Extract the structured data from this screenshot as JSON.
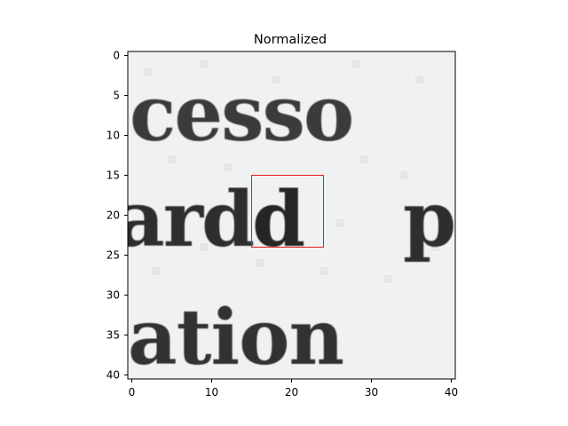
{
  "figure": {
    "title": "Normalized",
    "image_size": [
      41,
      41
    ],
    "x_ticks": [
      "0",
      "10",
      "20",
      "30",
      "40"
    ],
    "y_ticks": [
      "0",
      "5",
      "10",
      "15",
      "20",
      "25",
      "30",
      "35",
      "40"
    ],
    "image_rows": [
      "Row 1 text fragment: cesso",
      "Row 2 text fragment: ard p",
      "Row 3 text fragment: ation"
    ],
    "highlight_box": {
      "x_range": [
        15,
        24
      ],
      "y_range": [
        15,
        24
      ],
      "color": "#e41a1c"
    },
    "colormap": "gray_r"
  }
}
